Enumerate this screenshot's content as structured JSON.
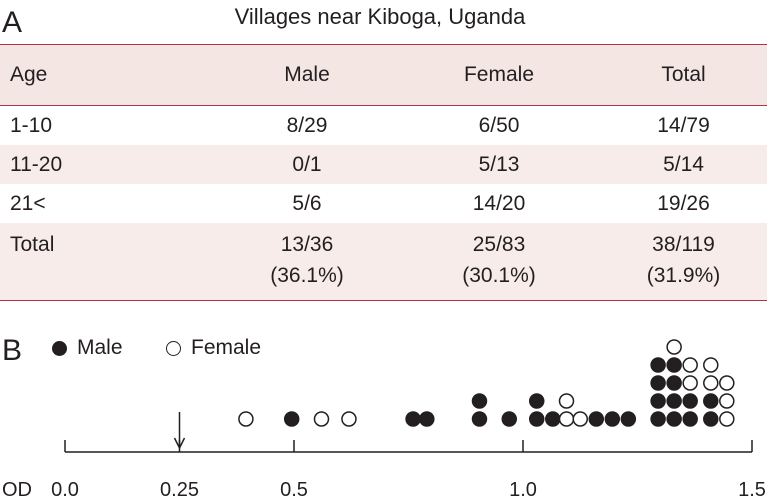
{
  "panel_a": {
    "label": "A",
    "title": "Villages near Kiboga, Uganda",
    "headers": [
      "Age",
      "Male",
      "Female",
      "Total"
    ],
    "rows": [
      {
        "age": "1-10",
        "male": "8/29",
        "female": "6/50",
        "total": "14/79"
      },
      {
        "age": "11-20",
        "male": "0/1",
        "female": "5/13",
        "total": "5/14"
      },
      {
        "age": "21<",
        "male": "5/6",
        "female": "14/20",
        "total": "19/26"
      }
    ],
    "total_row": {
      "age": "Total",
      "male": "13/36",
      "male_pct": "(36.1%)",
      "female": "25/83",
      "female_pct": "(30.1%)",
      "total": "38/119",
      "total_pct": "(31.9%)"
    }
  },
  "panel_b": {
    "label": "B",
    "legend": {
      "male": "Male",
      "female": "Female"
    },
    "axis_label": "OD"
  },
  "chart_data": {
    "type": "scatter",
    "title": "",
    "xlabel": "OD",
    "ylabel": "",
    "xlim": [
      0.0,
      1.5
    ],
    "ticks": [
      {
        "value": 0.0,
        "label": "0.0"
      },
      {
        "value": 0.25,
        "label": "0.25"
      },
      {
        "value": 0.5,
        "label": "0.5"
      },
      {
        "value": 1.0,
        "label": "1.0"
      },
      {
        "value": 1.5,
        "label": "1.5"
      }
    ],
    "cutoff": 0.25,
    "series": [
      {
        "name": "Male",
        "filled": true
      },
      {
        "name": "Female",
        "filled": false
      }
    ],
    "columns": [
      {
        "x": 0.395,
        "stack": [
          "F"
        ]
      },
      {
        "x": 0.495,
        "stack": [
          "M"
        ]
      },
      {
        "x": 0.56,
        "stack": [
          "F"
        ]
      },
      {
        "x": 0.62,
        "stack": [
          "F"
        ]
      },
      {
        "x": 0.76,
        "stack": [
          "M"
        ]
      },
      {
        "x": 0.79,
        "stack": [
          "M"
        ]
      },
      {
        "x": 0.905,
        "stack": [
          "M",
          "M"
        ]
      },
      {
        "x": 0.97,
        "stack": [
          "M"
        ]
      },
      {
        "x": 1.03,
        "stack": [
          "M",
          "M"
        ]
      },
      {
        "x": 1.065,
        "stack": [
          "M"
        ]
      },
      {
        "x": 1.095,
        "stack": [
          "F",
          "F"
        ]
      },
      {
        "x": 1.125,
        "stack": [
          "F"
        ]
      },
      {
        "x": 1.16,
        "stack": [
          "M"
        ]
      },
      {
        "x": 1.195,
        "stack": [
          "M"
        ]
      },
      {
        "x": 1.23,
        "stack": [
          "M"
        ]
      },
      {
        "x": 1.295,
        "stack": [
          "M",
          "M",
          "M",
          "M"
        ]
      },
      {
        "x": 1.33,
        "stack": [
          "M",
          "M",
          "M",
          "M",
          "F"
        ]
      },
      {
        "x": 1.365,
        "stack": [
          "M",
          "M",
          "F",
          "F"
        ]
      },
      {
        "x": 1.41,
        "stack": [
          "M",
          "M",
          "F",
          "F"
        ]
      },
      {
        "x": 1.445,
        "stack": [
          "F",
          "F",
          "F"
        ]
      }
    ]
  }
}
